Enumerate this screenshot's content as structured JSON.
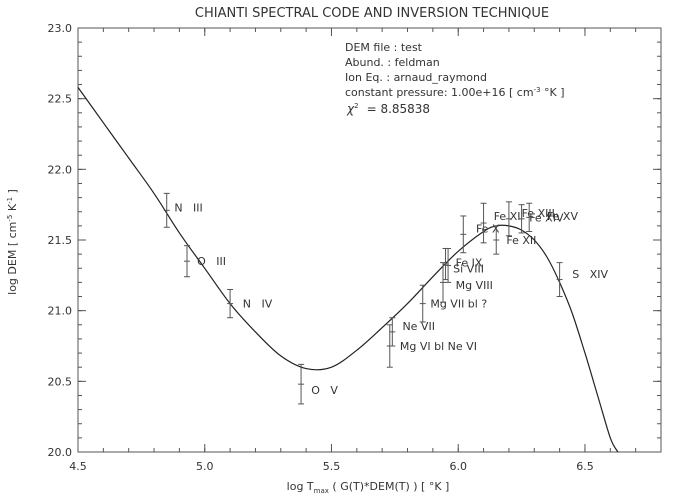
{
  "chart_data": {
    "type": "scatter",
    "title": "CHIANTI SPECTRAL CODE AND INVERSION TECHNIQUE",
    "xlabel_parts": {
      "pre": "log T",
      "sub": "max",
      "post": "  ( G(T)*DEM(T) )  [ °K ]"
    },
    "ylabel_parts": {
      "pre": "log DEM  [ cm",
      "sup1": "-5",
      "mid": " K",
      "sup2": "-1",
      "post": " ]"
    },
    "xlim": [
      4.5,
      6.8
    ],
    "ylim": [
      20.0,
      23.0
    ],
    "xticks": [
      "4.5",
      "5.0",
      "5.5",
      "6.0",
      "6.5"
    ],
    "xtick_values": [
      4.5,
      5.0,
      5.5,
      6.0,
      6.5
    ],
    "yticks": [
      "20.0",
      "20.5",
      "21.0",
      "21.5",
      "22.0",
      "22.5",
      "23.0"
    ],
    "ytick_values": [
      20.0,
      20.5,
      21.0,
      21.5,
      22.0,
      22.5,
      23.0
    ],
    "info": {
      "line1": "DEM file  : test",
      "line2": "Abund.  : feldman",
      "line3": "Ion Eq. : arnaud_raymond",
      "line4_pre": "constant pressure: 1.00e+16 [ cm",
      "line4_sup": "-3",
      "line4_post": " °K ]",
      "chi_symbol": "χ",
      "chi_sup": "2",
      "chi_value": "=        8.85838"
    },
    "dem_curve": {
      "x": [
        4.5,
        4.6,
        4.7,
        4.8,
        4.9,
        5.0,
        5.1,
        5.2,
        5.3,
        5.4,
        5.5,
        5.6,
        5.7,
        5.8,
        5.9,
        6.0,
        6.1,
        6.15,
        6.2,
        6.25,
        6.3,
        6.35,
        6.4,
        6.45,
        6.5,
        6.55,
        6.6,
        6.63
      ],
      "y": [
        22.58,
        22.33,
        22.08,
        21.83,
        21.55,
        21.3,
        21.05,
        20.85,
        20.68,
        20.59,
        20.6,
        20.72,
        20.88,
        21.05,
        21.24,
        21.42,
        21.56,
        21.6,
        21.6,
        21.57,
        21.5,
        21.38,
        21.2,
        20.98,
        20.7,
        20.4,
        20.1,
        20.0
      ]
    },
    "points": [
      {
        "x": 4.85,
        "y": 21.71,
        "err": 0.12,
        "label": "N   III",
        "lx": 4.88,
        "ly": 21.73
      },
      {
        "x": 4.93,
        "y": 21.35,
        "err": 0.11,
        "label": "O   III",
        "lx": 4.97,
        "ly": 21.35
      },
      {
        "x": 5.1,
        "y": 21.05,
        "err": 0.1,
        "label": "N   IV",
        "lx": 5.15,
        "ly": 21.05
      },
      {
        "x": 5.38,
        "y": 20.48,
        "err": 0.14,
        "label": "O   V",
        "lx": 5.42,
        "ly": 20.44
      },
      {
        "x": 5.73,
        "y": 20.75,
        "err": 0.15,
        "label": "Mg VI bl Ne VI",
        "lx": 5.77,
        "ly": 20.75
      },
      {
        "x": 5.74,
        "y": 20.85,
        "err": 0.1,
        "label": "Ne VII",
        "lx": 5.78,
        "ly": 20.89
      },
      {
        "x": 5.86,
        "y": 21.05,
        "err": 0.13,
        "label": "Mg VII bl ?",
        "lx": 5.89,
        "ly": 21.05
      },
      {
        "x": 5.94,
        "y": 21.2,
        "err": 0.14,
        "label": "Mg VIII",
        "lx": 5.99,
        "ly": 21.18
      },
      {
        "x": 5.95,
        "y": 21.33,
        "err": 0.11,
        "label": "Si VIII",
        "lx": 5.98,
        "ly": 21.3
      },
      {
        "x": 5.96,
        "y": 21.32,
        "err": 0.12,
        "label": "Fe IX",
        "lx": 5.99,
        "ly": 21.34
      },
      {
        "x": 6.02,
        "y": 21.54,
        "err": 0.13,
        "label": "Fe X",
        "lx": 6.07,
        "ly": 21.58
      },
      {
        "x": 6.1,
        "y": 21.62,
        "err": 0.14,
        "label": "Fe XI",
        "lx": 6.14,
        "ly": 21.67
      },
      {
        "x": 6.15,
        "y": 21.5,
        "err": 0.1,
        "label": "Fe XII",
        "lx": 6.19,
        "ly": 21.5
      },
      {
        "x": 6.2,
        "y": 21.65,
        "err": 0.12,
        "label": "Fe XIII",
        "lx": 6.25,
        "ly": 21.69
      },
      {
        "x": 6.25,
        "y": 21.65,
        "err": 0.1,
        "label": "Fe XIV",
        "lx": 6.28,
        "ly": 21.66
      },
      {
        "x": 6.28,
        "y": 21.66,
        "err": 0.1,
        "label": "Fe XV",
        "lx": 6.35,
        "ly": 21.67
      },
      {
        "x": 6.4,
        "y": 21.22,
        "err": 0.12,
        "label": "S   XIV",
        "lx": 6.45,
        "ly": 21.26
      }
    ]
  }
}
